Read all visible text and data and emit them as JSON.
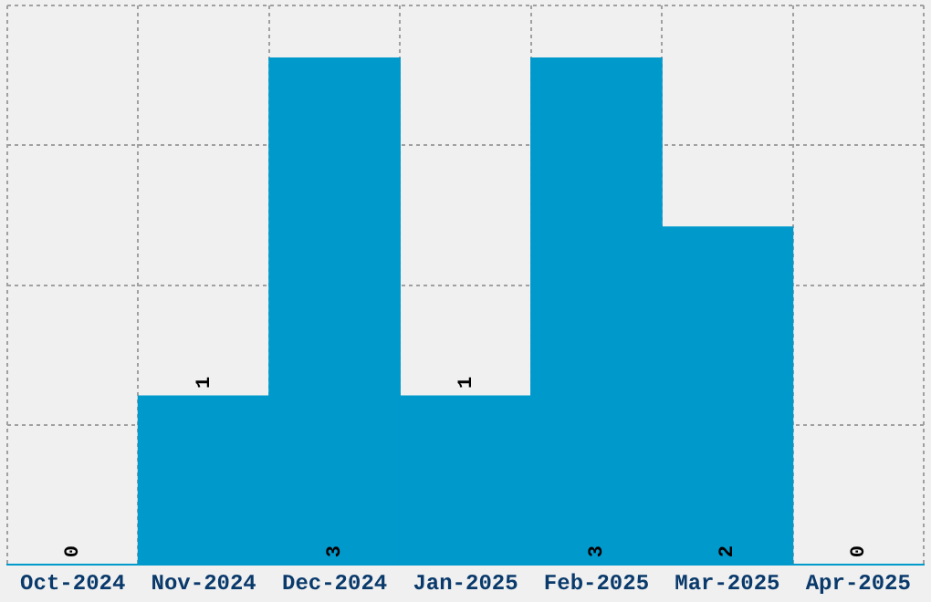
{
  "chart_data": {
    "type": "bar",
    "categories": [
      "Oct-2024",
      "Nov-2024",
      "Dec-2024",
      "Jan-2025",
      "Feb-2025",
      "Mar-2025",
      "Apr-2025"
    ],
    "values": [
      0,
      1,
      3,
      1,
      3,
      2,
      0
    ],
    "color": "#0099cc",
    "data_labels": true,
    "grid": true,
    "legend": false
  }
}
